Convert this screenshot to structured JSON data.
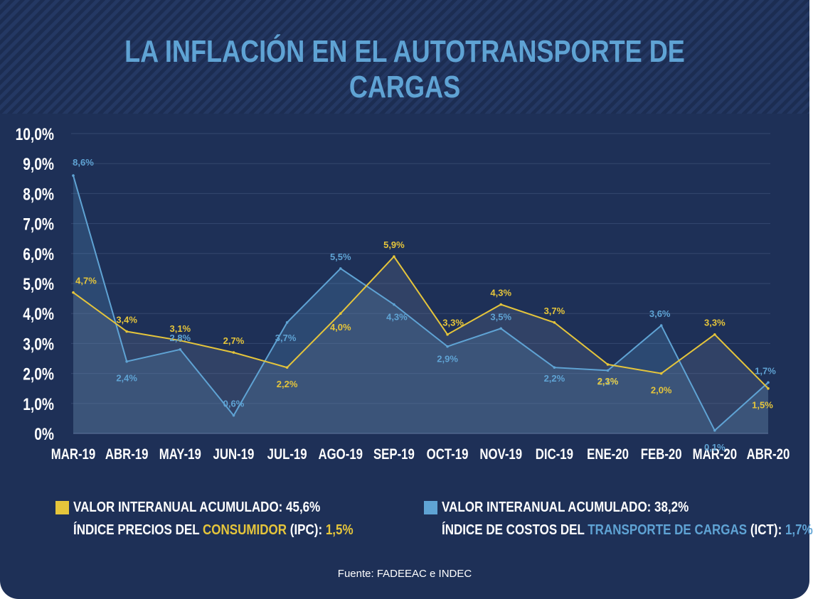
{
  "title": "LA INFLACIÓN EN EL AUTOTRANSPORTE DE CARGAS",
  "colors": {
    "ipc": "#e5c53b",
    "ict": "#5fa3d4",
    "background": "#1e3057",
    "grid": "#34476f"
  },
  "chart_data": {
    "type": "area",
    "categories": [
      "MAR-19",
      "ABR-19",
      "MAY-19",
      "JUN-19",
      "JUL-19",
      "AGO-19",
      "SEP-19",
      "OCT-19",
      "NOV-19",
      "DIC-19",
      "ENE-20",
      "FEB-20",
      "MAR-20",
      "ABR-20"
    ],
    "y_ticks": [
      "0%",
      "1,0%",
      "2,0%",
      "3,0%",
      "4,0%",
      "5,0%",
      "6,0%",
      "7,0%",
      "8,0%",
      "9,0%",
      "10,0%"
    ],
    "ylim": [
      0,
      10
    ],
    "grid": true,
    "series": [
      {
        "key": "ict",
        "values": [
          8.6,
          2.4,
          2.8,
          0.6,
          3.7,
          5.5,
          4.3,
          2.9,
          3.5,
          2.2,
          2.1,
          3.6,
          0.1,
          1.7
        ],
        "labels": [
          "8,6%",
          "2,4%",
          "2,8%",
          "0,6%",
          "3,7%",
          "5,5%",
          "4,3%",
          "2,9%",
          "3,5%",
          "2,2%",
          "2,1%",
          "3,6%",
          "0,1%",
          "1,7%"
        ]
      },
      {
        "key": "ipc",
        "values": [
          4.7,
          3.4,
          3.1,
          2.7,
          2.2,
          4.0,
          5.9,
          3.3,
          4.3,
          3.7,
          2.3,
          2.0,
          3.3,
          1.5
        ],
        "labels": [
          "4,7%",
          "3,4%",
          "3,1%",
          "2,7%",
          "2,2%",
          "4,0%",
          "5,9%",
          "3,3%",
          "4,3%",
          "3,7%",
          "2,3%",
          "2,0%",
          "3,3%",
          "1,5%"
        ]
      }
    ]
  },
  "legend": {
    "ipc": {
      "line1": "VALOR INTERANUAL ACUMULADO: 45,6%",
      "line2_prefix": "ÍNDICE PRECIOS DEL ",
      "line2_highlight": "CONSUMIDOR",
      "line2_mid": " (IPC): ",
      "line2_value": "1,5%"
    },
    "ict": {
      "line1": "VALOR INTERANUAL ACUMULADO: 38,2%",
      "line2_prefix": "ÍNDICE DE COSTOS DEL ",
      "line2_highlight": "TRANSPORTE DE CARGAS",
      "line2_mid": " (ICT): ",
      "line2_value": "1,7%"
    }
  },
  "source": "Fuente: FADEEAC e INDEC"
}
